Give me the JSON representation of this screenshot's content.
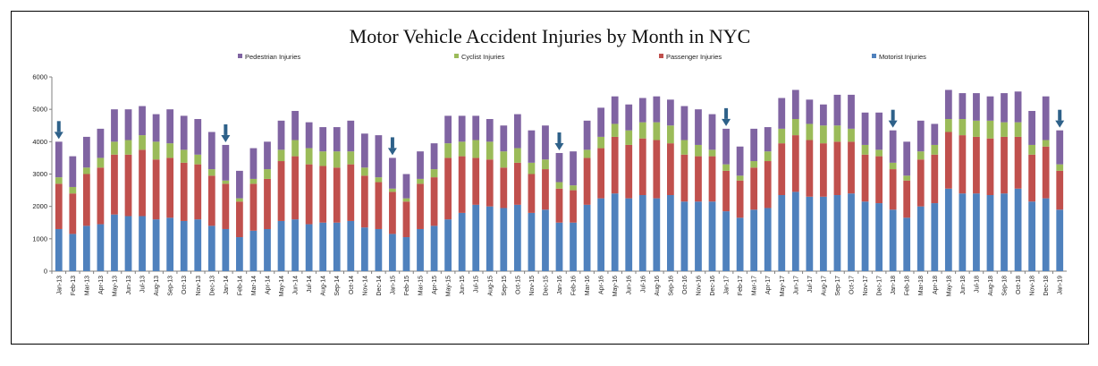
{
  "chart_data": {
    "type": "bar",
    "stacked": true,
    "title": "Motor Vehicle Accident Injuries by Month in NYC",
    "xlabel": "",
    "ylabel": "",
    "ylim": [
      0,
      6000
    ],
    "yticks": [
      0,
      1000,
      2000,
      3000,
      4000,
      5000,
      6000
    ],
    "grid": false,
    "legend_position": "top",
    "legend_order": [
      "Pedestrian Injuries",
      "Cyclist Injuries",
      "Passenger Injuries",
      "Motorist Injuries"
    ],
    "colors": {
      "Motorist Injuries": "#4f81bd",
      "Passenger Injuries": "#c0504d",
      "Cyclist Injuries": "#9bbb59",
      "Pedestrian Injuries": "#8064a2",
      "arrows": "#2e6189"
    },
    "annotations": {
      "arrow_marker_months": [
        "Jan-13",
        "Jan-14",
        "Jan-15",
        "Jan-16",
        "Jan-17",
        "Jan-18",
        "Jan-19"
      ]
    },
    "categories": [
      "Jan-13",
      "Feb-13",
      "Mar-13",
      "Apr-13",
      "May-13",
      "Jun-13",
      "Jul-13",
      "Aug-13",
      "Sep-13",
      "Oct-13",
      "Nov-13",
      "Dec-13",
      "Jan-14",
      "Feb-14",
      "Mar-14",
      "Apr-14",
      "May-14",
      "Jun-14",
      "Jul-14",
      "Aug-14",
      "Sep-14",
      "Oct-14",
      "Nov-14",
      "Dec-14",
      "Jan-15",
      "Feb-15",
      "Mar-15",
      "Apr-15",
      "May-15",
      "Jun-15",
      "Jul-15",
      "Aug-15",
      "Sep-15",
      "Oct-15",
      "Nov-15",
      "Dec-15",
      "Jan-16",
      "Feb-16",
      "Mar-16",
      "Apr-16",
      "May-16",
      "Jun-16",
      "Jul-16",
      "Aug-16",
      "Sep-16",
      "Oct-16",
      "Nov-16",
      "Dec-16",
      "Jan-17",
      "Feb-17",
      "Mar-17",
      "Apr-17",
      "May-17",
      "Jun-17",
      "Jul-17",
      "Aug-17",
      "Sep-17",
      "Oct-17",
      "Nov-17",
      "Dec-17",
      "Jan-18",
      "Feb-18",
      "Mar-18",
      "Apr-18",
      "May-18",
      "Jun-18",
      "Jul-18",
      "Aug-18",
      "Sep-18",
      "Oct-18",
      "Nov-18",
      "Dec-18",
      "Jan-19"
    ],
    "series": [
      {
        "name": "Motorist Injuries",
        "values": [
          1300,
          1150,
          1400,
          1450,
          1750,
          1700,
          1700,
          1600,
          1650,
          1550,
          1600,
          1400,
          1300,
          1050,
          1250,
          1300,
          1550,
          1600,
          1450,
          1500,
          1500,
          1550,
          1350,
          1300,
          1150,
          1050,
          1300,
          1400,
          1600,
          1800,
          2050,
          2000,
          1950,
          2050,
          1800,
          1900,
          1500,
          1500,
          2050,
          2250,
          2400,
          2250,
          2350,
          2250,
          2350,
          2150,
          2150,
          2150,
          1850,
          1650,
          1900,
          1950,
          2350,
          2450,
          2300,
          2300,
          2350,
          2400,
          2150,
          2100,
          1900,
          1650,
          2000,
          2100,
          2550,
          2400,
          2400,
          2350,
          2400,
          2550,
          2150,
          2250,
          1900
        ]
      },
      {
        "name": "Passenger Injuries",
        "values": [
          1400,
          1250,
          1600,
          1750,
          1850,
          1900,
          2050,
          1850,
          1850,
          1800,
          1700,
          1550,
          1400,
          1100,
          1450,
          1550,
          1850,
          1950,
          1850,
          1750,
          1700,
          1750,
          1600,
          1450,
          1300,
          1100,
          1400,
          1500,
          1900,
          1750,
          1450,
          1450,
          1250,
          1300,
          1200,
          1250,
          1050,
          1000,
          1450,
          1550,
          1750,
          1650,
          1750,
          1800,
          1600,
          1450,
          1400,
          1400,
          1250,
          1150,
          1300,
          1450,
          1600,
          1750,
          1750,
          1650,
          1650,
          1600,
          1450,
          1450,
          1250,
          1150,
          1450,
          1500,
          1750,
          1800,
          1750,
          1750,
          1750,
          1600,
          1450,
          1600,
          1200
        ]
      },
      {
        "name": "Cyclist Injuries",
        "values": [
          200,
          200,
          200,
          300,
          400,
          450,
          450,
          550,
          450,
          400,
          300,
          200,
          100,
          100,
          150,
          300,
          350,
          500,
          500,
          450,
          500,
          400,
          250,
          150,
          100,
          100,
          150,
          250,
          450,
          450,
          550,
          550,
          500,
          450,
          350,
          300,
          200,
          150,
          250,
          350,
          400,
          450,
          500,
          550,
          550,
          450,
          350,
          200,
          200,
          150,
          200,
          300,
          450,
          500,
          500,
          550,
          500,
          400,
          300,
          200,
          200,
          150,
          250,
          300,
          400,
          500,
          500,
          550,
          450,
          450,
          300,
          200,
          200
        ]
      },
      {
        "name": "Pedestrian Injuries",
        "values": [
          1100,
          950,
          950,
          900,
          1000,
          950,
          900,
          850,
          1050,
          1050,
          1100,
          1150,
          1100,
          850,
          950,
          850,
          900,
          900,
          800,
          750,
          750,
          950,
          1050,
          1300,
          950,
          750,
          850,
          800,
          850,
          800,
          750,
          700,
          800,
          1050,
          1000,
          1050,
          900,
          1050,
          900,
          900,
          850,
          800,
          750,
          800,
          800,
          1050,
          1100,
          1100,
          1100,
          900,
          1000,
          750,
          950,
          900,
          750,
          650,
          950,
          1050,
          1000,
          1150,
          1000,
          1050,
          950,
          650,
          900,
          800,
          850,
          750,
          900,
          950,
          1050,
          1350,
          1050
        ]
      }
    ]
  }
}
